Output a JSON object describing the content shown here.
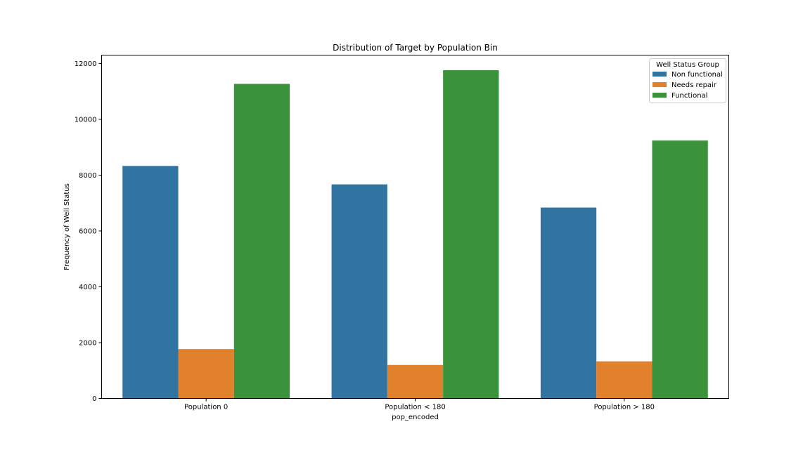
{
  "chart_data": {
    "type": "bar",
    "title": "Distribution of Target by Population Bin",
    "xlabel": "pop_encoded",
    "ylabel": "Frequency of Well Status",
    "categories": [
      "Population 0",
      "Population < 180",
      "Population > 180"
    ],
    "ylim": [
      0,
      12300
    ],
    "yticks": [
      0,
      2000,
      4000,
      6000,
      8000,
      10000,
      12000
    ],
    "grid": false,
    "legend": {
      "title": "Well Status Group",
      "placement": "top-right"
    },
    "series": [
      {
        "name": "Non functional",
        "color": "#3274a1",
        "values": [
          8330,
          7670,
          6840
        ]
      },
      {
        "name": "Needs repair",
        "color": "#e1812c",
        "values": [
          1770,
          1200,
          1330
        ]
      },
      {
        "name": "Functional",
        "color": "#3a923a",
        "values": [
          11270,
          11760,
          9240
        ]
      }
    ]
  }
}
